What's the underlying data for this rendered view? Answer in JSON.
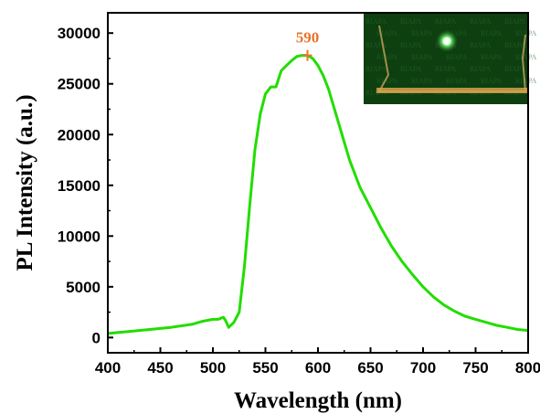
{
  "chart_data": {
    "type": "line",
    "xlabel": "Wavelength (nm)",
    "ylabel": "PL Intensity (a.u.)",
    "xlim": [
      400,
      800
    ],
    "ylim": [
      -1500,
      32000
    ],
    "x_ticks": [
      "400",
      "450",
      "500",
      "550",
      "600",
      "650",
      "700",
      "750",
      "800"
    ],
    "y_ticks": [
      "0",
      "5000",
      "10000",
      "15000",
      "20000",
      "25000",
      "30000"
    ],
    "series": [
      {
        "color": "#22dd00",
        "x": [
          400,
          420,
          440,
          460,
          480,
          490,
          500,
          505,
          510,
          512,
          515,
          520,
          525,
          530,
          535,
          540,
          545,
          550,
          555,
          560,
          565,
          570,
          575,
          580,
          585,
          590,
          595,
          600,
          605,
          610,
          620,
          630,
          640,
          650,
          660,
          670,
          680,
          690,
          700,
          710,
          720,
          730,
          740,
          750,
          760,
          770,
          780,
          790,
          800
        ],
        "y": [
          400,
          600,
          800,
          1000,
          1300,
          1600,
          1800,
          1800,
          2000,
          1700,
          1000,
          1500,
          2500,
          7000,
          13000,
          18500,
          22000,
          24000,
          24700,
          24700,
          26300,
          26800,
          27300,
          27700,
          27800,
          27800,
          27500,
          26800,
          25800,
          24500,
          21000,
          17500,
          14800,
          12800,
          10800,
          9000,
          7500,
          6200,
          5000,
          4000,
          3200,
          2600,
          2100,
          1800,
          1500,
          1200,
          1000,
          800,
          700
        ]
      }
    ],
    "annotations": [
      {
        "text": "590",
        "x": 590,
        "y": 27800,
        "color": "#e8742a"
      }
    ],
    "inset": {
      "description_icon": "photo-green-emission-film",
      "watermark": "RIAPA"
    }
  }
}
